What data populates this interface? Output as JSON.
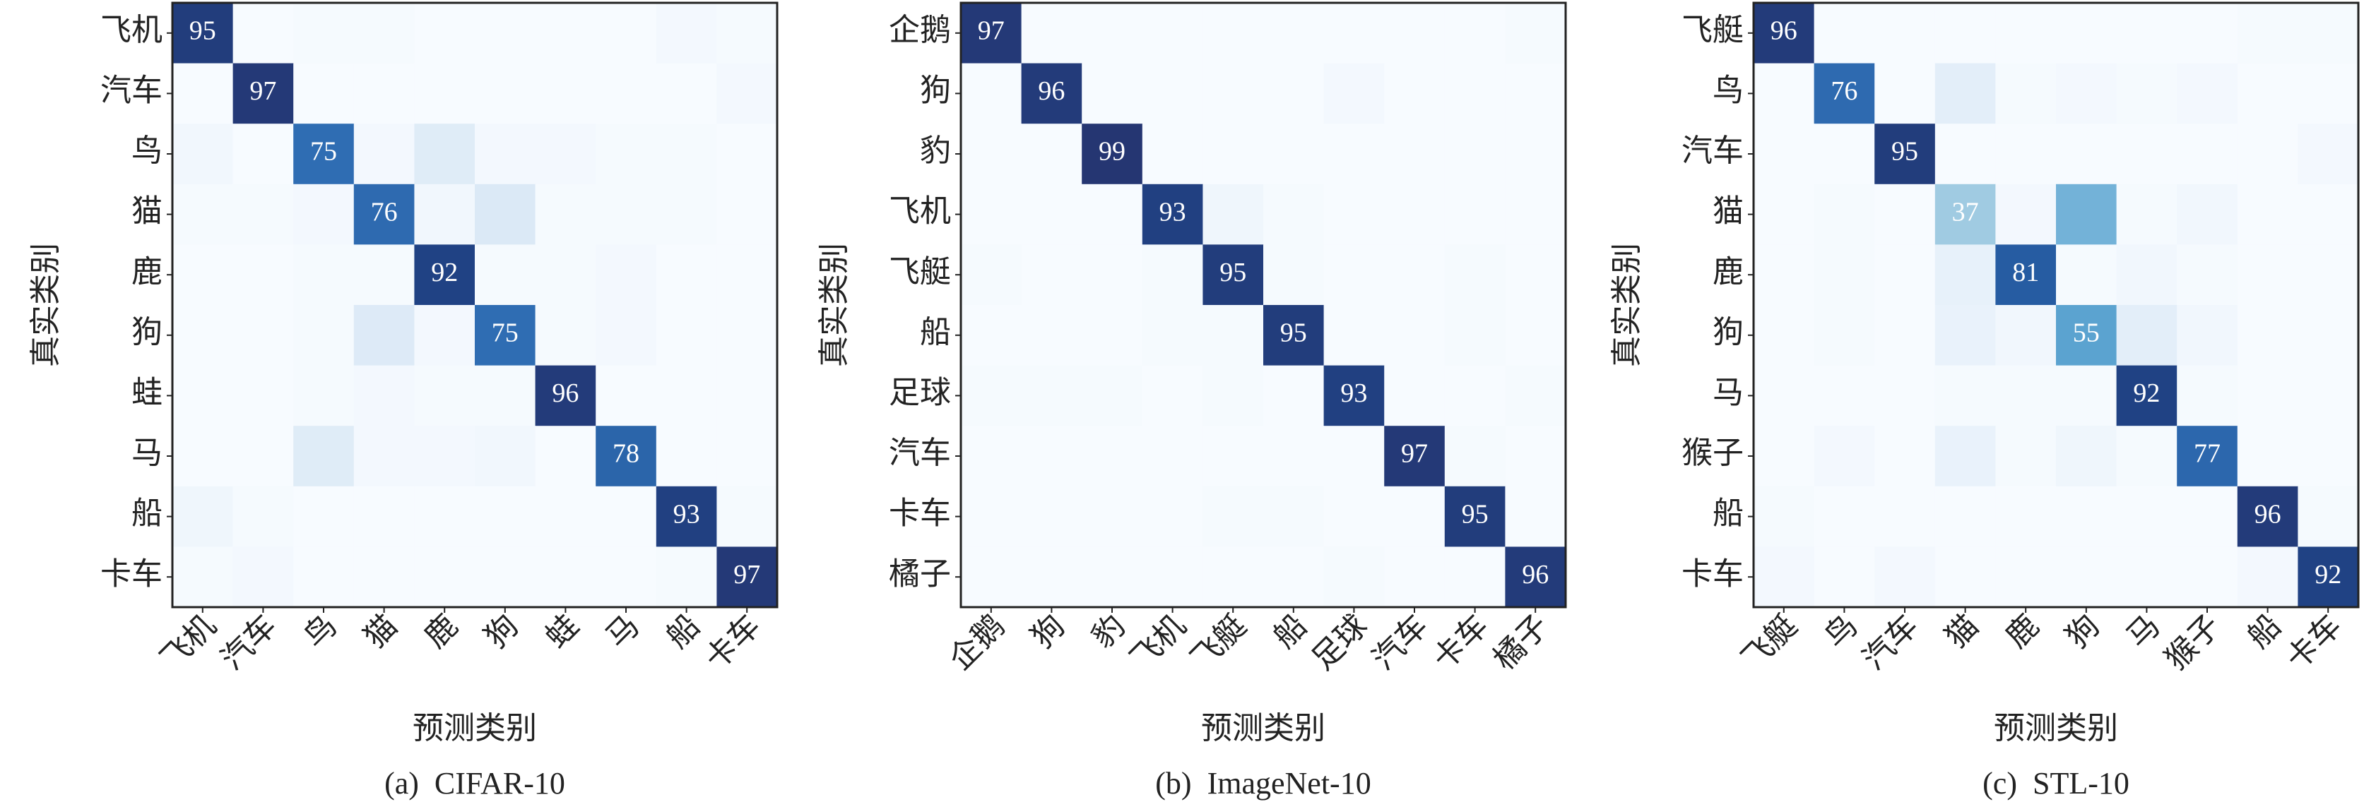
{
  "chart_data": [
    {
      "type": "heatmap",
      "title": "(a)  CIFAR-10",
      "x_label": "预测类别",
      "y_label": "真实类别",
      "categories": [
        "飞机",
        "汽车",
        "鸟",
        "猫",
        "鹿",
        "狗",
        "蛙",
        "马",
        "船",
        "卡车"
      ],
      "values": [
        [
          95,
          0,
          1,
          1,
          0,
          0,
          0,
          0,
          2,
          1
        ],
        [
          0,
          97,
          0,
          0,
          0,
          0,
          0,
          0,
          0,
          2
        ],
        [
          3,
          0,
          75,
          2,
          12,
          2,
          2,
          1,
          1,
          0
        ],
        [
          1,
          1,
          2,
          76,
          3,
          14,
          1,
          1,
          1,
          0
        ],
        [
          0,
          0,
          1,
          1,
          92,
          1,
          1,
          2,
          0,
          0
        ],
        [
          0,
          0,
          1,
          13,
          2,
          75,
          1,
          2,
          0,
          0
        ],
        [
          0,
          0,
          1,
          2,
          1,
          1,
          96,
          0,
          0,
          0
        ],
        [
          0,
          0,
          12,
          2,
          2,
          3,
          0,
          78,
          0,
          0
        ],
        [
          4,
          1,
          0,
          0,
          0,
          0,
          0,
          0,
          93,
          1
        ],
        [
          1,
          2,
          0,
          0,
          0,
          0,
          0,
          0,
          1,
          97
        ]
      ],
      "clim": [
        0,
        100
      ],
      "colormap": [
        "#f7fbff",
        "#deebf7",
        "#c6dbef",
        "#9ecae1",
        "#6baed6",
        "#4292c6",
        "#2f6db3",
        "#1d4a8f",
        "#263470"
      ],
      "annotate": "diagonal",
      "annotation_color": "#ffffff"
    },
    {
      "type": "heatmap",
      "title": "(b)  ImageNet-10",
      "x_label": "预测类别",
      "y_label": "真实类别",
      "categories": [
        "企鹅",
        "狗",
        "豹",
        "飞机",
        "飞艇",
        "船",
        "足球",
        "汽车",
        "卡车",
        "橘子"
      ],
      "values": [
        [
          97,
          0,
          0,
          0,
          0,
          0,
          0,
          0,
          0,
          1
        ],
        [
          0,
          96,
          0,
          0,
          0,
          0,
          2,
          0,
          0,
          0
        ],
        [
          0,
          0,
          99,
          0,
          0,
          0,
          0,
          0,
          0,
          0
        ],
        [
          0,
          0,
          0,
          93,
          4,
          1,
          0,
          0,
          0,
          0
        ],
        [
          1,
          0,
          0,
          1,
          95,
          1,
          0,
          0,
          1,
          0
        ],
        [
          0,
          0,
          0,
          1,
          1,
          95,
          0,
          0,
          1,
          0
        ],
        [
          1,
          1,
          1,
          0,
          1,
          0,
          93,
          0,
          0,
          1
        ],
        [
          0,
          0,
          0,
          0,
          0,
          0,
          0,
          97,
          1,
          0
        ],
        [
          0,
          0,
          0,
          0,
          1,
          1,
          0,
          0,
          95,
          0
        ],
        [
          0,
          0,
          0,
          0,
          0,
          0,
          1,
          0,
          0,
          96
        ]
      ],
      "clim": [
        0,
        100
      ],
      "colormap": [
        "#f7fbff",
        "#deebf7",
        "#c6dbef",
        "#9ecae1",
        "#6baed6",
        "#4292c6",
        "#2f6db3",
        "#1d4a8f",
        "#263470"
      ],
      "annotate": "diagonal",
      "annotation_color": "#ffffff"
    },
    {
      "type": "heatmap",
      "title": "(c)  STL-10",
      "x_label": "预测类别",
      "y_label": "真实类别",
      "categories": [
        "飞艇",
        "鸟",
        "汽车",
        "猫",
        "鹿",
        "狗",
        "马",
        "猴子",
        "船",
        "卡车"
      ],
      "values": [
        [
          96,
          0,
          0,
          0,
          0,
          0,
          0,
          0,
          1,
          1
        ],
        [
          0,
          76,
          0,
          10,
          1,
          2,
          1,
          2,
          0,
          0
        ],
        [
          0,
          0,
          95,
          0,
          0,
          0,
          0,
          0,
          0,
          2
        ],
        [
          0,
          1,
          0,
          37,
          2,
          48,
          1,
          3,
          0,
          0
        ],
        [
          0,
          1,
          0,
          8,
          81,
          1,
          3,
          1,
          0,
          0
        ],
        [
          0,
          1,
          0,
          7,
          3,
          55,
          10,
          3,
          0,
          0
        ],
        [
          0,
          0,
          0,
          1,
          1,
          1,
          92,
          1,
          0,
          0
        ],
        [
          0,
          2,
          0,
          7,
          1,
          4,
          1,
          77,
          0,
          0
        ],
        [
          1,
          0,
          0,
          0,
          0,
          0,
          0,
          0,
          96,
          1
        ],
        [
          2,
          0,
          2,
          0,
          0,
          0,
          0,
          0,
          2,
          92
        ]
      ],
      "clim": [
        0,
        100
      ],
      "colormap": [
        "#f7fbff",
        "#deebf7",
        "#c6dbef",
        "#9ecae1",
        "#6baed6",
        "#4292c6",
        "#2f6db3",
        "#1d4a8f",
        "#263470"
      ],
      "annotate": "diagonal",
      "annotation_color": "#ffffff"
    }
  ]
}
